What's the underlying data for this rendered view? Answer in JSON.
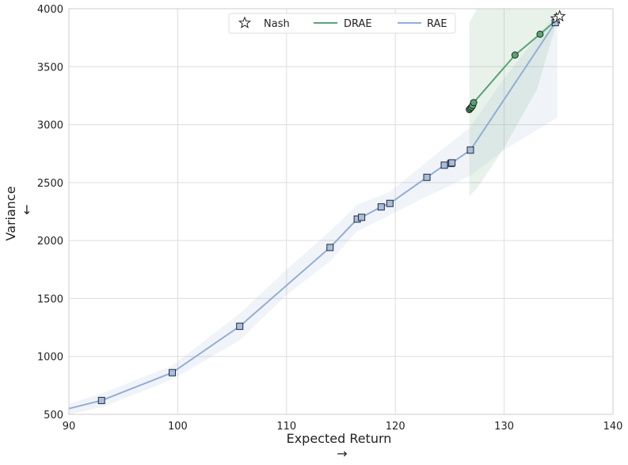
{
  "chart_data": {
    "type": "line",
    "xlabel": "Expected Return",
    "xlabel_arrow": "→",
    "ylabel": "Variance",
    "ylabel_arrow": "←",
    "xlim": [
      90,
      140
    ],
    "ylim": [
      500,
      4000
    ],
    "xticks": [
      90,
      100,
      110,
      120,
      130,
      140
    ],
    "yticks": [
      500,
      1000,
      1500,
      2000,
      2500,
      3000,
      3500,
      4000
    ],
    "grid": true,
    "legend_position": "top-center",
    "legend": [
      "Nash",
      "DRAE",
      "RAE"
    ],
    "series": [
      {
        "name": "RAE",
        "color": "#92aed6",
        "marker": "square",
        "line": {
          "x": [
            90,
            93,
            99.5,
            105.7,
            114.0,
            116.5,
            116.9,
            118.7,
            119.5,
            122.9,
            124.5,
            125.1,
            125.2,
            126.9,
            134.7
          ],
          "y": [
            550,
            620,
            860,
            1260,
            1940,
            2185,
            2200,
            2290,
            2320,
            2545,
            2650,
            2665,
            2670,
            2780,
            3880
          ]
        },
        "markers": {
          "x": [
            93,
            99.5,
            105.7,
            114.0,
            116.5,
            116.9,
            118.7,
            119.5,
            122.9,
            124.5,
            125.1,
            125.2,
            126.9,
            134.7
          ],
          "y": [
            620,
            860,
            1260,
            1940,
            2185,
            2200,
            2290,
            2320,
            2545,
            2650,
            2665,
            2670,
            2780,
            3880
          ]
        },
        "band": {
          "x": [
            90,
            93,
            99.5,
            105.7,
            110,
            114.0,
            116.5,
            119.5,
            122.9,
            124.5,
            126.9,
            130,
            134.7,
            134.9
          ],
          "lower": [
            500,
            560,
            800,
            1140,
            1530,
            1820,
            2080,
            2220,
            2380,
            2450,
            2560,
            2780,
            3050,
            3060
          ],
          "upper": [
            590,
            680,
            920,
            1370,
            1750,
            2080,
            2310,
            2420,
            2680,
            2800,
            2980,
            3400,
            3950,
            3950
          ]
        }
      },
      {
        "name": "DRAE",
        "color": "#5aa373",
        "marker": "circle",
        "line": {
          "x": [
            126.8,
            126.9,
            127.0,
            127.1,
            127.2,
            131.0,
            133.3,
            134.9
          ],
          "y": [
            3130,
            3140,
            3150,
            3165,
            3190,
            3600,
            3780,
            3910
          ]
        },
        "markers": {
          "x": [
            126.8,
            126.9,
            127.0,
            127.1,
            127.2,
            131.0,
            133.3
          ],
          "y": [
            3130,
            3140,
            3150,
            3165,
            3190,
            3600,
            3780
          ]
        },
        "band": {
          "x": [
            126.8,
            127.5,
            130,
            133,
            134.9
          ],
          "lower": [
            2380,
            2450,
            2800,
            3300,
            3900
          ],
          "upper": [
            3880,
            4000,
            4000,
            4000,
            4000
          ]
        }
      },
      {
        "name": "Nash",
        "color": "#ffffff",
        "marker": "star",
        "markers": {
          "x": [
            134.8,
            135.1
          ],
          "y": [
            3915,
            3935
          ]
        }
      }
    ]
  }
}
